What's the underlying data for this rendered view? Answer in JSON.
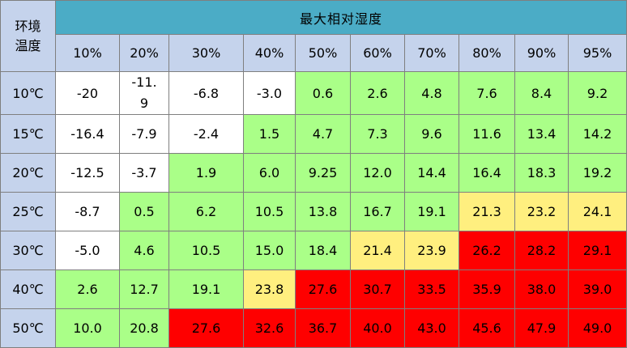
{
  "table": {
    "corner_label": "环境温度",
    "title": "最大相对湿度",
    "humidity_levels": [
      "10%",
      "20%",
      "30%",
      "40%",
      "50%",
      "60%",
      "70%",
      "80%",
      "90%",
      "95%"
    ],
    "rows": [
      {
        "temp": "10℃",
        "values": [
          "-20",
          "-11.9",
          "-6.8",
          "-3.0",
          "0.6",
          "2.6",
          "4.8",
          "7.6",
          "8.4",
          "9.2"
        ],
        "colors": [
          "white",
          "white",
          "white",
          "white",
          "green",
          "green",
          "green",
          "green",
          "green",
          "green"
        ]
      },
      {
        "temp": "15℃",
        "values": [
          "-16.4",
          "-7.9",
          "-2.4",
          "1.5",
          "4.7",
          "7.3",
          "9.6",
          "11.6",
          "13.4",
          "14.2"
        ],
        "colors": [
          "white",
          "white",
          "white",
          "green",
          "green",
          "green",
          "green",
          "green",
          "green",
          "green"
        ]
      },
      {
        "temp": "20℃",
        "values": [
          "-12.5",
          "-3.7",
          "1.9",
          "6.0",
          "9.25",
          "12.0",
          "14.4",
          "16.4",
          "18.3",
          "19.2"
        ],
        "colors": [
          "white",
          "white",
          "green",
          "green",
          "green",
          "green",
          "green",
          "green",
          "green",
          "green"
        ]
      },
      {
        "temp": "25℃",
        "values": [
          "-8.7",
          "0.5",
          "6.2",
          "10.5",
          "13.8",
          "16.7",
          "19.1",
          "21.3",
          "23.2",
          "24.1"
        ],
        "colors": [
          "white",
          "green",
          "green",
          "green",
          "green",
          "green",
          "green",
          "yellow",
          "yellow",
          "yellow"
        ]
      },
      {
        "temp": "30℃",
        "values": [
          "-5.0",
          "4.6",
          "10.5",
          "15.0",
          "18.4",
          "21.4",
          "23.9",
          "26.2",
          "28.2",
          "29.1"
        ],
        "colors": [
          "white",
          "green",
          "green",
          "green",
          "green",
          "yellow",
          "yellow",
          "red",
          "red",
          "red"
        ]
      },
      {
        "temp": "40℃",
        "values": [
          "2.6",
          "12.7",
          "19.1",
          "23.8",
          "27.6",
          "30.7",
          "33.5",
          "35.9",
          "38.0",
          "39.0"
        ],
        "colors": [
          "green",
          "green",
          "green",
          "yellow",
          "red",
          "red",
          "red",
          "red",
          "red",
          "red"
        ]
      },
      {
        "temp": "50℃",
        "values": [
          "10.0",
          "20.8",
          "27.6",
          "32.6",
          "36.7",
          "40.0",
          "43.0",
          "45.6",
          "47.9",
          "49.0"
        ],
        "colors": [
          "green",
          "green",
          "red",
          "red",
          "red",
          "red",
          "red",
          "red",
          "red",
          "red"
        ]
      }
    ]
  },
  "colors": {
    "title_bg": "#4bacc6",
    "header_bg": "#c5d3ec",
    "green": "#aaff88",
    "yellow": "#ffef7f",
    "red": "#fe0000",
    "white": "#ffffff"
  }
}
